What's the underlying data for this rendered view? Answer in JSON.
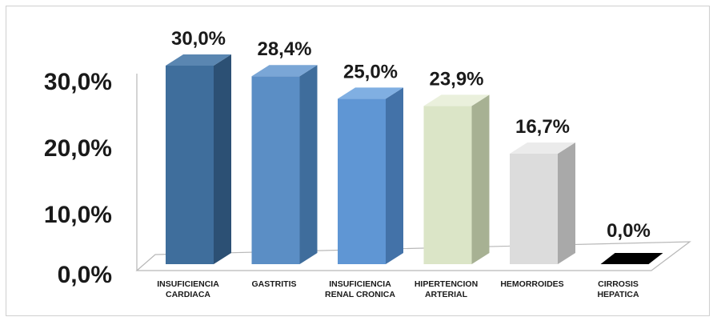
{
  "chart_data": {
    "type": "bar",
    "categories": [
      [
        "INSUFICIENCIA",
        "CARDIACA"
      ],
      [
        "GASTRITIS"
      ],
      [
        "INSUFICIENCIA",
        "RENAL CRONICA"
      ],
      [
        "HIPERTENCION",
        "ARTERIAL"
      ],
      [
        "HEMORROIDES"
      ],
      [
        "CIRROSIS",
        "HEPATICA"
      ]
    ],
    "values": [
      30.0,
      28.4,
      25.0,
      23.9,
      16.7,
      0.0
    ],
    "value_labels": [
      "30,0%",
      "28,4%",
      "25,0%",
      "23,9%",
      "16,7%",
      "0,0%"
    ],
    "y_ticks": [
      0,
      10,
      20,
      30
    ],
    "y_tick_labels": [
      "0,0%",
      "10,0%",
      "20,0%",
      "30,0%"
    ],
    "ylim": [
      0,
      30
    ],
    "grid": false,
    "legend": "none",
    "title": "",
    "xlabel": "",
    "ylabel": "",
    "bar_colors": [
      {
        "front": "#3f6e9c",
        "side": "#2c5074",
        "top": "#5a86b1"
      },
      {
        "front": "#5b8ec5",
        "side": "#3f6d9c",
        "top": "#7aa6d6"
      },
      {
        "front": "#5f96d4",
        "side": "#4372a8",
        "top": "#80afe2"
      },
      {
        "front": "#dbe5c7",
        "side": "#a7b193",
        "top": "#eaf0dc"
      },
      {
        "front": "#dcdcdc",
        "side": "#a9a9a9",
        "top": "#ebebeb"
      },
      {
        "front": "#000000",
        "side": "#000000",
        "top": "#000000"
      }
    ],
    "floor_color": "#ffffff",
    "wall_stroke": "#b8b8b8"
  }
}
